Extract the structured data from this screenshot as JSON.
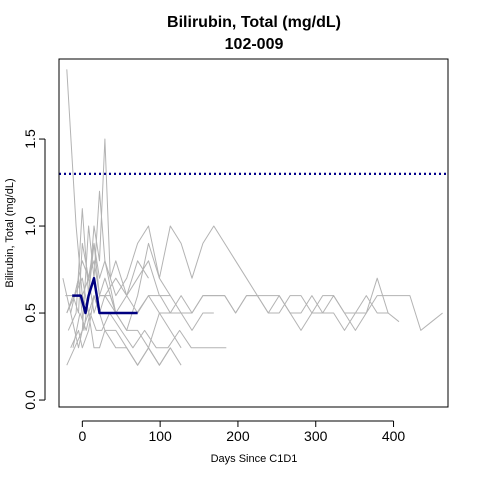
{
  "chart_data": {
    "type": "line",
    "title": "Bilirubin, Total (mg/dL)",
    "subtitle": "102-009",
    "xlabel": "Days Since C1D1",
    "ylabel": "Bilirubin, Total (mg/dL)",
    "xlim": [
      -30,
      470
    ],
    "ylim": [
      -0.04,
      1.96
    ],
    "x_ticks": [
      0,
      100,
      200,
      300,
      400
    ],
    "y_ticks": [
      0.0,
      0.5,
      1.0,
      1.5
    ],
    "y_tick_labels": [
      "0.0",
      "0.5",
      "1.0",
      "1.5"
    ],
    "reference_line": {
      "y": 1.3,
      "color": "#00008b",
      "style": "dotted"
    },
    "background_series_color": "#b3b3b3",
    "highlight_color": "#000080",
    "grid": false,
    "background_series": [
      {
        "x": [
          -22,
          -10,
          0,
          8,
          15,
          22,
          29,
          36,
          43,
          57,
          70,
          85,
          100,
          113,
          127,
          141,
          155,
          169,
          183,
          197,
          211,
          225,
          239,
          253,
          267,
          281,
          295,
          309,
          323,
          337,
          351,
          365,
          379,
          393,
          407,
          421,
          435,
          449,
          463
        ],
        "y": [
          0.6,
          0.6,
          0.6,
          0.5,
          0.6,
          0.5,
          0.6,
          0.6,
          0.5,
          0.5,
          0.5,
          0.6,
          0.6,
          0.5,
          0.5,
          0.5,
          0.6,
          0.6,
          0.6,
          0.5,
          0.6,
          0.6,
          0.5,
          0.5,
          0.6,
          0.6,
          0.5,
          0.5,
          0.6,
          0.5,
          0.5,
          0.5,
          0.6,
          0.6,
          0.6,
          0.6,
          0.4,
          0.45,
          0.5
        ]
      },
      {
        "x": [
          -20,
          -8,
          0,
          8,
          15,
          22,
          29,
          43,
          57,
          71,
          85,
          99,
          113,
          127,
          141,
          155,
          169,
          183,
          197,
          211,
          225,
          239,
          253,
          267,
          281,
          295,
          309,
          323,
          337,
          351,
          365,
          379,
          393,
          407
        ],
        "y": [
          1.9,
          1.0,
          0.6,
          0.7,
          0.5,
          0.6,
          0.6,
          0.5,
          0.6,
          0.5,
          0.6,
          0.5,
          0.5,
          0.6,
          0.5,
          0.6,
          0.6,
          0.6,
          0.5,
          0.6,
          0.6,
          0.5,
          0.6,
          0.5,
          0.4,
          0.5,
          0.6,
          0.6,
          0.5,
          0.4,
          0.5,
          0.7,
          0.5,
          0.45
        ]
      },
      {
        "x": [
          -15,
          -5,
          2,
          8,
          15,
          22,
          29,
          43,
          57,
          71,
          85,
          99,
          113,
          127,
          141,
          155,
          169,
          183,
          197,
          211,
          225,
          239,
          253,
          267,
          281,
          295,
          309,
          323,
          337,
          351,
          365,
          379,
          393
        ],
        "y": [
          0.5,
          0.7,
          0.4,
          0.6,
          0.9,
          0.7,
          0.8,
          0.6,
          0.7,
          0.9,
          1.0,
          0.7,
          1.0,
          0.9,
          0.7,
          0.9,
          1.0,
          0.9,
          0.8,
          0.7,
          0.6,
          0.6,
          0.6,
          0.5,
          0.5,
          0.6,
          0.5,
          0.5,
          0.4,
          0.5,
          0.6,
          0.5,
          0.5
        ]
      },
      {
        "x": [
          -18,
          -8,
          0,
          8,
          15,
          22,
          29,
          36,
          43,
          57,
          71,
          85,
          99,
          113,
          127,
          141,
          155,
          169
        ],
        "y": [
          0.4,
          0.5,
          1.1,
          0.6,
          1.0,
          0.8,
          1.5,
          0.7,
          0.8,
          0.6,
          0.7,
          0.8,
          0.6,
          0.6,
          0.5,
          0.4,
          0.5,
          0.5
        ]
      },
      {
        "x": [
          -20,
          -10,
          0,
          8,
          15,
          22,
          29,
          43,
          57,
          71,
          85,
          99,
          113,
          127
        ],
        "y": [
          0.2,
          0.3,
          0.4,
          1.0,
          0.7,
          1.2,
          0.8,
          0.5,
          0.4,
          0.4,
          0.3,
          0.5,
          0.4,
          0.3
        ]
      },
      {
        "x": [
          -20,
          -12,
          -5,
          0,
          8,
          15,
          22,
          29,
          43,
          57,
          71,
          85,
          99,
          113
        ],
        "y": [
          0.5,
          0.6,
          0.5,
          0.9,
          0.7,
          0.8,
          0.6,
          0.7,
          0.5,
          0.4,
          0.6,
          0.9,
          0.7,
          0.6
        ]
      },
      {
        "x": [
          -25,
          -15,
          -5,
          0,
          8,
          15,
          22,
          29,
          43,
          57,
          71,
          85,
          99,
          113
        ],
        "y": [
          0.7,
          0.5,
          0.3,
          0.4,
          0.5,
          0.3,
          0.3,
          0.4,
          0.3,
          0.3,
          0.2,
          0.3,
          0.2,
          0.3
        ]
      },
      {
        "x": [
          -15,
          -5,
          0,
          8,
          15,
          22,
          29,
          43,
          57,
          71,
          85,
          99,
          113,
          127
        ],
        "y": [
          0.3,
          0.4,
          0.3,
          0.4,
          0.6,
          0.5,
          0.4,
          0.4,
          0.3,
          0.2,
          0.3,
          0.2,
          0.3,
          0.2
        ]
      },
      {
        "x": [
          -12,
          -3,
          5,
          10,
          18,
          25,
          35,
          50,
          65,
          80,
          95,
          110,
          125,
          140,
          155,
          170,
          185
        ],
        "y": [
          0.3,
          0.5,
          0.4,
          0.5,
          0.4,
          0.4,
          0.5,
          0.4,
          0.3,
          0.4,
          0.3,
          0.3,
          0.4,
          0.3,
          0.3,
          0.3,
          0.3
        ]
      },
      {
        "x": [
          -10,
          0,
          8,
          15,
          22,
          29,
          43,
          57,
          71,
          85
        ],
        "y": [
          0.6,
          0.8,
          0.7,
          0.9,
          0.6,
          0.6,
          0.7,
          0.6,
          0.8,
          0.7
        ]
      },
      {
        "x": [
          -20,
          -10,
          0,
          8,
          15,
          22
        ],
        "y": [
          0.5,
          0.6,
          0.7,
          0.5,
          0.6,
          0.5
        ]
      }
    ],
    "series": [
      {
        "x": [
          -13,
          -2,
          4,
          8,
          15,
          22,
          29,
          43,
          57,
          71
        ],
        "y": [
          0.6,
          0.6,
          0.5,
          0.6,
          0.7,
          0.5,
          0.5,
          0.5,
          0.5,
          0.5
        ]
      }
    ]
  }
}
